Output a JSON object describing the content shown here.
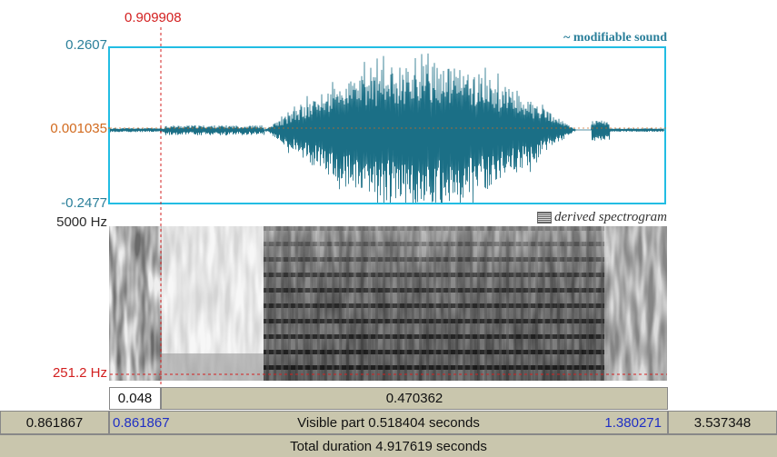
{
  "cursor": {
    "time_label": "0.909908"
  },
  "waveform": {
    "title": "~ modifiable sound",
    "y_max_label": "0.2607",
    "y_cursor_label": "0.001035",
    "y_min_label": "-0.2477",
    "accent_color": "#22bde3",
    "trace_color": "#1b6f86"
  },
  "spectrogram": {
    "title": "derived spectrogram",
    "icon": "spectrogram-icon",
    "f_max_label": "5000 Hz",
    "f_cursor_label": "251.2 Hz"
  },
  "selection_bar": {
    "left_segment": "0.048",
    "right_segment": "0.470362"
  },
  "visible_bar": {
    "left_outside": "0.861867",
    "visible_start": "0.861867",
    "visible_label": "Visible part 0.518404 seconds",
    "visible_end": "1.380271",
    "right_outside": "3.537348"
  },
  "total_bar": {
    "label": "Total duration 4.917619 seconds"
  }
}
